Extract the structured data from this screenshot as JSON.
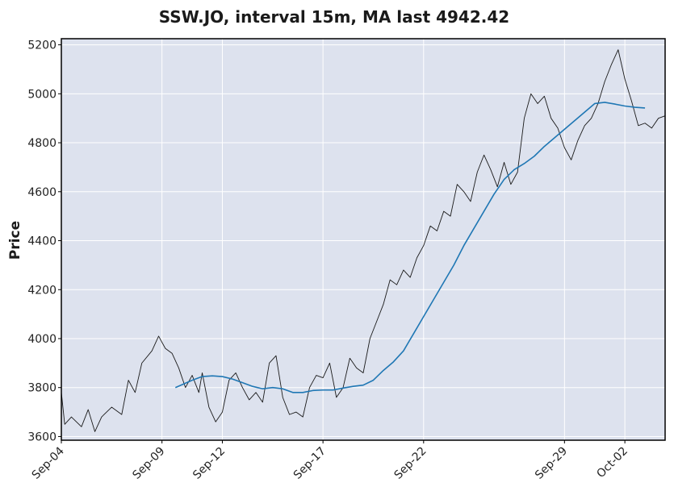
{
  "chart_data": {
    "type": "line",
    "title": "SSW.JO, interval 15m, MA last 4942.42",
    "xlabel": "",
    "ylabel": "Price",
    "ylim": [
      3585,
      5225
    ],
    "xlim": [
      "2025-09-04",
      "2025-10-04T00:00"
    ],
    "y_ticks": [
      3600,
      3800,
      4000,
      4200,
      4400,
      4600,
      4800,
      5000,
      5200
    ],
    "x_ticks": [
      {
        "date": "2025-09-04",
        "label": "Sep-04"
      },
      {
        "date": "2025-09-09",
        "label": "Sep-09"
      },
      {
        "date": "2025-09-12",
        "label": "Sep-12"
      },
      {
        "date": "2025-09-17",
        "label": "Sep-17"
      },
      {
        "date": "2025-09-22",
        "label": "Sep-22"
      },
      {
        "date": "2025-09-29",
        "label": "Sep-29"
      },
      {
        "date": "2025-10-02",
        "label": "Oct-02"
      }
    ],
    "grid": true,
    "colors": {
      "background": "#dde2ee",
      "grid": "#ffffff",
      "price": "#1a1a1a",
      "ma": "#1f77b4"
    },
    "series": [
      {
        "label": "price",
        "points": [
          [
            "2025-09-04T00:00",
            3780
          ],
          [
            "2025-09-04T04:00",
            3650
          ],
          [
            "2025-09-04T12:00",
            3680
          ],
          [
            "2025-09-05T00:00",
            3640
          ],
          [
            "2025-09-05T08:00",
            3710
          ],
          [
            "2025-09-05T16:00",
            3620
          ],
          [
            "2025-09-06T00:00",
            3680
          ],
          [
            "2025-09-06T12:00",
            3720
          ],
          [
            "2025-09-07T00:00",
            3690
          ],
          [
            "2025-09-07T08:00",
            3830
          ],
          [
            "2025-09-07T16:00",
            3780
          ],
          [
            "2025-09-08T00:00",
            3900
          ],
          [
            "2025-09-08T12:00",
            3950
          ],
          [
            "2025-09-08T20:00",
            4010
          ],
          [
            "2025-09-09T04:00",
            3960
          ],
          [
            "2025-09-09T12:00",
            3940
          ],
          [
            "2025-09-09T20:00",
            3880
          ],
          [
            "2025-09-10T04:00",
            3800
          ],
          [
            "2025-09-10T12:00",
            3850
          ],
          [
            "2025-09-10T20:00",
            3780
          ],
          [
            "2025-09-11T00:00",
            3860
          ],
          [
            "2025-09-11T08:00",
            3720
          ],
          [
            "2025-09-11T16:00",
            3660
          ],
          [
            "2025-09-12T00:00",
            3700
          ],
          [
            "2025-09-12T08:00",
            3830
          ],
          [
            "2025-09-12T16:00",
            3860
          ],
          [
            "2025-09-13T00:00",
            3800
          ],
          [
            "2025-09-13T08:00",
            3750
          ],
          [
            "2025-09-13T16:00",
            3780
          ],
          [
            "2025-09-14T00:00",
            3740
          ],
          [
            "2025-09-14T08:00",
            3900
          ],
          [
            "2025-09-14T16:00",
            3930
          ],
          [
            "2025-09-15T00:00",
            3760
          ],
          [
            "2025-09-15T08:00",
            3690
          ],
          [
            "2025-09-15T16:00",
            3700
          ],
          [
            "2025-09-16T00:00",
            3680
          ],
          [
            "2025-09-16T08:00",
            3800
          ],
          [
            "2025-09-16T16:00",
            3850
          ],
          [
            "2025-09-17T00:00",
            3840
          ],
          [
            "2025-09-17T08:00",
            3900
          ],
          [
            "2025-09-17T16:00",
            3760
          ],
          [
            "2025-09-18T00:00",
            3800
          ],
          [
            "2025-09-18T08:00",
            3920
          ],
          [
            "2025-09-18T16:00",
            3880
          ],
          [
            "2025-09-19T00:00",
            3860
          ],
          [
            "2025-09-19T08:00",
            4000
          ],
          [
            "2025-09-19T16:00",
            4070
          ],
          [
            "2025-09-20T00:00",
            4140
          ],
          [
            "2025-09-20T08:00",
            4240
          ],
          [
            "2025-09-20T16:00",
            4220
          ],
          [
            "2025-09-21T00:00",
            4280
          ],
          [
            "2025-09-21T08:00",
            4250
          ],
          [
            "2025-09-21T16:00",
            4330
          ],
          [
            "2025-09-22T00:00",
            4380
          ],
          [
            "2025-09-22T08:00",
            4460
          ],
          [
            "2025-09-22T16:00",
            4440
          ],
          [
            "2025-09-23T00:00",
            4520
          ],
          [
            "2025-09-23T08:00",
            4500
          ],
          [
            "2025-09-23T16:00",
            4630
          ],
          [
            "2025-09-24T00:00",
            4600
          ],
          [
            "2025-09-24T08:00",
            4560
          ],
          [
            "2025-09-24T16:00",
            4680
          ],
          [
            "2025-09-25T00:00",
            4750
          ],
          [
            "2025-09-25T08:00",
            4690
          ],
          [
            "2025-09-25T16:00",
            4620
          ],
          [
            "2025-09-26T00:00",
            4720
          ],
          [
            "2025-09-26T08:00",
            4630
          ],
          [
            "2025-09-26T16:00",
            4680
          ],
          [
            "2025-09-27T00:00",
            4900
          ],
          [
            "2025-09-27T08:00",
            5000
          ],
          [
            "2025-09-27T16:00",
            4960
          ],
          [
            "2025-09-28T00:00",
            4990
          ],
          [
            "2025-09-28T08:00",
            4900
          ],
          [
            "2025-09-28T16:00",
            4860
          ],
          [
            "2025-09-29T00:00",
            4780
          ],
          [
            "2025-09-29T08:00",
            4730
          ],
          [
            "2025-09-29T16:00",
            4810
          ],
          [
            "2025-09-30T00:00",
            4870
          ],
          [
            "2025-09-30T08:00",
            4900
          ],
          [
            "2025-09-30T16:00",
            4960
          ],
          [
            "2025-10-01T00:00",
            5050
          ],
          [
            "2025-10-01T08:00",
            5120
          ],
          [
            "2025-10-01T16:00",
            5180
          ],
          [
            "2025-10-02T00:00",
            5060
          ],
          [
            "2025-10-02T08:00",
            4970
          ],
          [
            "2025-10-02T16:00",
            4870
          ],
          [
            "2025-10-03T00:00",
            4880
          ],
          [
            "2025-10-03T08:00",
            4860
          ],
          [
            "2025-10-03T16:00",
            4900
          ],
          [
            "2025-10-04T00:00",
            4910
          ]
        ]
      },
      {
        "label": "MA",
        "points": [
          [
            "2025-09-09T16:00",
            3800
          ],
          [
            "2025-09-10T12:00",
            3830
          ],
          [
            "2025-09-11T00:00",
            3845
          ],
          [
            "2025-09-11T12:00",
            3848
          ],
          [
            "2025-09-12T00:00",
            3845
          ],
          [
            "2025-09-12T12:00",
            3835
          ],
          [
            "2025-09-13T00:00",
            3820
          ],
          [
            "2025-09-13T12:00",
            3805
          ],
          [
            "2025-09-14T00:00",
            3795
          ],
          [
            "2025-09-14T12:00",
            3800
          ],
          [
            "2025-09-15T00:00",
            3795
          ],
          [
            "2025-09-15T12:00",
            3780
          ],
          [
            "2025-09-16T00:00",
            3780
          ],
          [
            "2025-09-16T12:00",
            3788
          ],
          [
            "2025-09-17T00:00",
            3790
          ],
          [
            "2025-09-17T12:00",
            3790
          ],
          [
            "2025-09-18T00:00",
            3798
          ],
          [
            "2025-09-18T12:00",
            3805
          ],
          [
            "2025-09-19T00:00",
            3810
          ],
          [
            "2025-09-19T12:00",
            3830
          ],
          [
            "2025-09-20T00:00",
            3870
          ],
          [
            "2025-09-20T12:00",
            3905
          ],
          [
            "2025-09-21T00:00",
            3950
          ],
          [
            "2025-09-21T12:00",
            4020
          ],
          [
            "2025-09-22T00:00",
            4090
          ],
          [
            "2025-09-22T12:00",
            4160
          ],
          [
            "2025-09-23T00:00",
            4230
          ],
          [
            "2025-09-23T12:00",
            4300
          ],
          [
            "2025-09-24T00:00",
            4380
          ],
          [
            "2025-09-24T12:00",
            4450
          ],
          [
            "2025-09-25T00:00",
            4520
          ],
          [
            "2025-09-25T12:00",
            4590
          ],
          [
            "2025-09-26T00:00",
            4650
          ],
          [
            "2025-09-26T12:00",
            4690
          ],
          [
            "2025-09-27T00:00",
            4715
          ],
          [
            "2025-09-27T12:00",
            4745
          ],
          [
            "2025-09-28T00:00",
            4785
          ],
          [
            "2025-09-28T12:00",
            4820
          ],
          [
            "2025-09-29T00:00",
            4855
          ],
          [
            "2025-09-29T12:00",
            4890
          ],
          [
            "2025-09-30T00:00",
            4925
          ],
          [
            "2025-09-30T12:00",
            4960
          ],
          [
            "2025-10-01T00:00",
            4965
          ],
          [
            "2025-10-01T12:00",
            4958
          ],
          [
            "2025-10-02T00:00",
            4950
          ],
          [
            "2025-10-02T12:00",
            4945
          ],
          [
            "2025-10-03T00:00",
            4942
          ]
        ]
      }
    ]
  }
}
